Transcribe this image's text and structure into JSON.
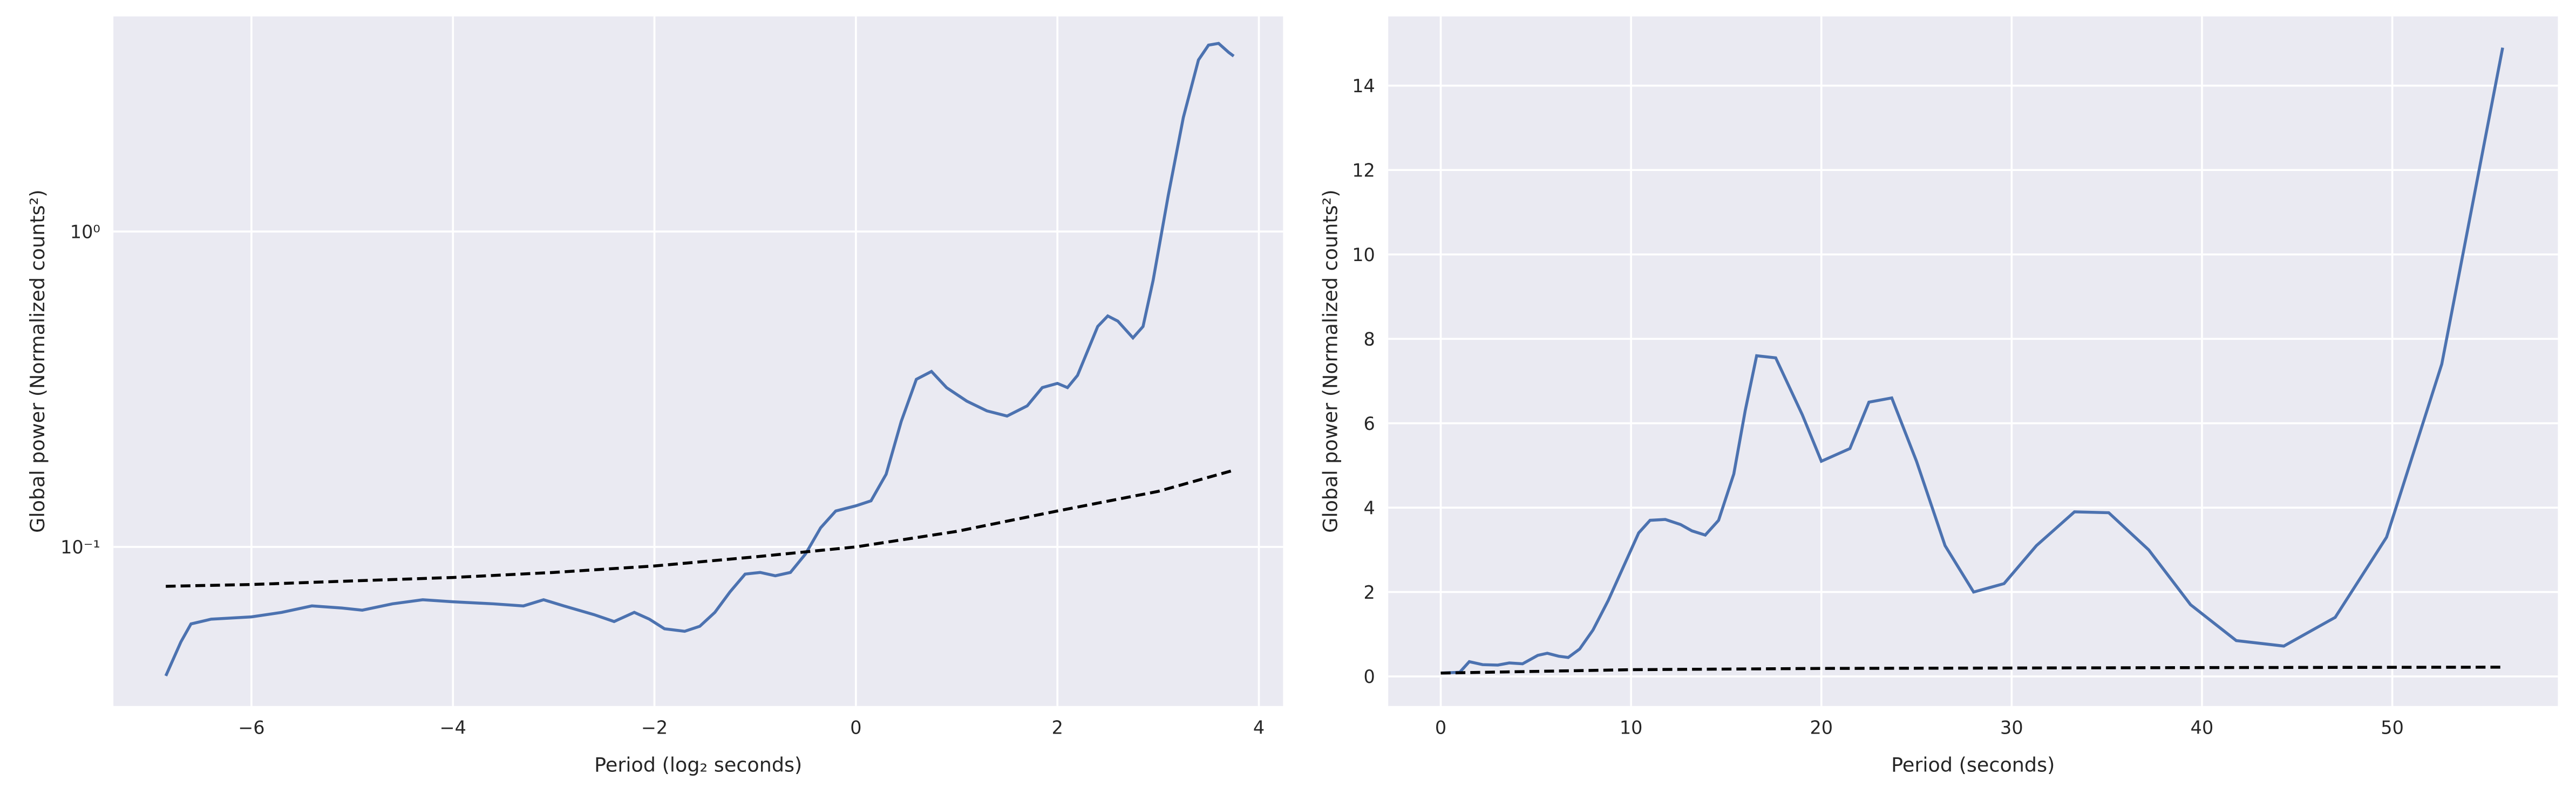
{
  "chart_data": [
    {
      "type": "line",
      "yscale": "log",
      "grid": true,
      "xlabel": "Period (log₂ seconds)",
      "ylabel": "Global power (Normalized counts²)",
      "xlim": [
        -7.37,
        4.24
      ],
      "ylim": [
        0.0313,
        4.81
      ],
      "xticks": [
        {
          "value": -6,
          "label": "−6"
        },
        {
          "value": -4,
          "label": "−4"
        },
        {
          "value": -2,
          "label": "−2"
        },
        0,
        2,
        4
      ],
      "yticks": [
        {
          "value": 0.1,
          "label": "10⁻¹"
        },
        {
          "value": 1,
          "label": "10⁰"
        }
      ],
      "series": [
        {
          "color": "#4c72b0",
          "linestyle": "solid",
          "x": [
            -6.85,
            -6.7,
            -6.6,
            -6.4,
            -6,
            -5.7,
            -5.4,
            -5.1,
            -4.9,
            -4.6,
            -4.3,
            -4,
            -3.6,
            -3.3,
            -3.1,
            -2.9,
            -2.6,
            -2.4,
            -2.2,
            -2.05,
            -1.9,
            -1.7,
            -1.55,
            -1.4,
            -1.25,
            -1.1,
            -0.95,
            -0.8,
            -0.65,
            -0.5,
            -0.35,
            -0.2,
            0,
            0.15,
            0.3,
            0.45,
            0.6,
            0.75,
            0.9,
            1.1,
            1.3,
            1.5,
            1.7,
            1.85,
            2.0,
            2.1,
            2.2,
            2.4,
            2.5,
            2.6,
            2.75,
            2.85,
            2.95,
            3.1,
            3.25,
            3.4,
            3.5,
            3.6,
            3.7,
            3.75
          ],
          "values": [
            0.039,
            0.05,
            0.057,
            0.059,
            0.06,
            0.062,
            0.065,
            0.064,
            0.063,
            0.066,
            0.068,
            0.067,
            0.066,
            0.065,
            0.068,
            0.065,
            0.061,
            0.058,
            0.062,
            0.059,
            0.055,
            0.054,
            0.056,
            0.062,
            0.072,
            0.082,
            0.083,
            0.081,
            0.083,
            0.095,
            0.115,
            0.13,
            0.135,
            0.14,
            0.17,
            0.25,
            0.34,
            0.36,
            0.32,
            0.29,
            0.27,
            0.26,
            0.28,
            0.32,
            0.33,
            0.32,
            0.35,
            0.5,
            0.54,
            0.52,
            0.46,
            0.5,
            0.7,
            1.3,
            2.3,
            3.5,
            3.9,
            3.95,
            3.7,
            3.6
          ]
        },
        {
          "color": "#000000",
          "linestyle": "dashed",
          "x": [
            -6.85,
            -6,
            -5,
            -4,
            -3,
            -2,
            -1,
            0,
            1,
            2,
            3,
            3.75
          ],
          "values": [
            0.075,
            0.076,
            0.078,
            0.08,
            0.083,
            0.087,
            0.093,
            0.1,
            0.112,
            0.13,
            0.15,
            0.175
          ]
        }
      ]
    },
    {
      "type": "line",
      "yscale": "linear",
      "grid": true,
      "xlabel": "Period (seconds)",
      "ylabel": "Global power (Normalized counts²)",
      "xlim": [
        -2.76,
        58.7
      ],
      "ylim": [
        -0.7,
        15.64
      ],
      "xticks": [
        0,
        10,
        20,
        30,
        40,
        50
      ],
      "yticks": [
        0,
        2,
        4,
        6,
        8,
        10,
        12,
        14
      ],
      "series": [
        {
          "color": "#4c72b0",
          "linestyle": "solid",
          "x": [
            0,
            1,
            1.5,
            2.2,
            3,
            3.6,
            4.3,
            5.1,
            5.6,
            6.2,
            6.7,
            7.3,
            8,
            8.8,
            9.6,
            10.4,
            11,
            11.8,
            12.6,
            13.2,
            13.9,
            14.6,
            15.4,
            16.0,
            16.6,
            17.6,
            19.0,
            20.0,
            21.5,
            22.5,
            23.7,
            25,
            26.5,
            28,
            29.6,
            31.3,
            33.3,
            35.1,
            37.2,
            39.4,
            41.8,
            44.3,
            47,
            49.7,
            52.6,
            55.8
          ],
          "values": [
            0.08,
            0.1,
            0.35,
            0.28,
            0.27,
            0.32,
            0.3,
            0.5,
            0.55,
            0.48,
            0.45,
            0.65,
            1.1,
            1.8,
            2.6,
            3.4,
            3.7,
            3.72,
            3.6,
            3.45,
            3.35,
            3.7,
            4.8,
            6.3,
            7.6,
            7.55,
            6.2,
            5.1,
            5.4,
            6.5,
            6.6,
            5.1,
            3.1,
            2.0,
            2.2,
            3.1,
            3.9,
            3.88,
            3.0,
            1.7,
            0.85,
            0.72,
            1.4,
            3.3,
            7.4,
            14.9
          ]
        },
        {
          "color": "#000000",
          "linestyle": "dashed",
          "x": [
            0,
            10,
            20,
            30,
            40,
            55.8
          ],
          "values": [
            0.08,
            0.16,
            0.19,
            0.2,
            0.21,
            0.22
          ]
        }
      ]
    }
  ]
}
